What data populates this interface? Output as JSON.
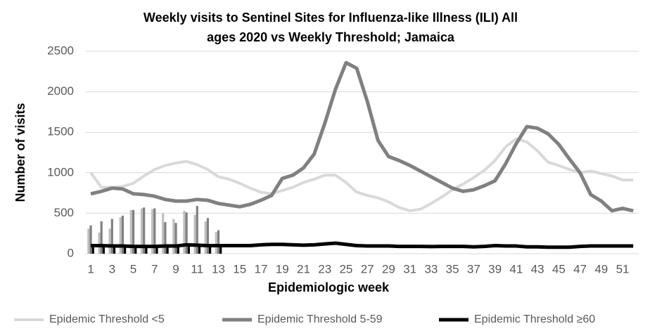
{
  "chart_data": {
    "type": "line",
    "title": [
      "Weekly visits to Sentinel Sites for Influenza-like Illness (ILI) All",
      "ages 2020 vs Weekly Threshold; Jamaica"
    ],
    "x_label": "Epidemiologic week",
    "y_label": "Number of visits",
    "categories": [
      1,
      null,
      3,
      null,
      5,
      null,
      7,
      null,
      9,
      null,
      11,
      null,
      13,
      null,
      15,
      null,
      17,
      null,
      19,
      null,
      21,
      null,
      23,
      null,
      25,
      null,
      27,
      null,
      29,
      null,
      31,
      null,
      33,
      null,
      35,
      null,
      37,
      null,
      39,
      null,
      41,
      null,
      43,
      null,
      45,
      null,
      47,
      null,
      49,
      null,
      51,
      null
    ],
    "series": [
      {
        "name": "Epidemic Threshold <5",
        "color": "#d9d9d9",
        "values": [
          1000,
          820,
          820,
          830,
          870,
          960,
          1040,
          1090,
          1120,
          1140,
          1100,
          1040,
          950,
          920,
          870,
          810,
          760,
          740,
          780,
          820,
          880,
          920,
          970,
          970,
          880,
          760,
          720,
          690,
          640,
          570,
          530,
          550,
          620,
          700,
          790,
          860,
          940,
          1030,
          1150,
          1320,
          1420,
          1380,
          1270,
          1130,
          1090,
          1040,
          1000,
          1020,
          990,
          960,
          910,
          910
        ]
      },
      {
        "name": "Epidemic Threshold 5-59",
        "color": "#808080",
        "values": [
          740,
          770,
          810,
          800,
          740,
          730,
          710,
          670,
          650,
          650,
          670,
          660,
          620,
          600,
          580,
          610,
          660,
          720,
          930,
          970,
          1060,
          1230,
          1610,
          2030,
          2360,
          2290,
          1880,
          1400,
          1200,
          1150,
          1090,
          1020,
          950,
          880,
          810,
          770,
          790,
          840,
          900,
          1110,
          1360,
          1570,
          1550,
          1480,
          1350,
          1170,
          1000,
          730,
          650,
          530,
          560,
          530
        ]
      },
      {
        "name": "Epidemic Threshold ≥60",
        "color": "#000000",
        "values": [
          100,
          100,
          95,
          95,
          90,
          90,
          90,
          95,
          95,
          110,
          105,
          100,
          100,
          100,
          100,
          100,
          110,
          115,
          115,
          110,
          105,
          110,
          120,
          130,
          115,
          100,
          95,
          95,
          95,
          90,
          90,
          90,
          88,
          90,
          90,
          90,
          85,
          90,
          100,
          95,
          95,
          85,
          85,
          80,
          80,
          80,
          90,
          95,
          95,
          95,
          95,
          95
        ]
      }
    ],
    "bar_series": [
      {
        "color": "#bfbfbf",
        "values": [
          310,
          260,
          310,
          450,
          540,
          560,
          550,
          500,
          430,
          530,
          480,
          400,
          270
        ]
      },
      {
        "color": "#808080",
        "values": [
          350,
          400,
          430,
          470,
          540,
          570,
          560,
          390,
          380,
          510,
          590,
          440,
          290
        ]
      },
      {
        "color": "#000000",
        "values": [
          90,
          85,
          90,
          95,
          90,
          85,
          90,
          95,
          80,
          100,
          95,
          85,
          90
        ]
      }
    ],
    "ylim": [
      0,
      2500
    ],
    "yticks": [
      0,
      500,
      1000,
      1500,
      2000,
      2500
    ],
    "grid": true,
    "legend": "bottom"
  }
}
